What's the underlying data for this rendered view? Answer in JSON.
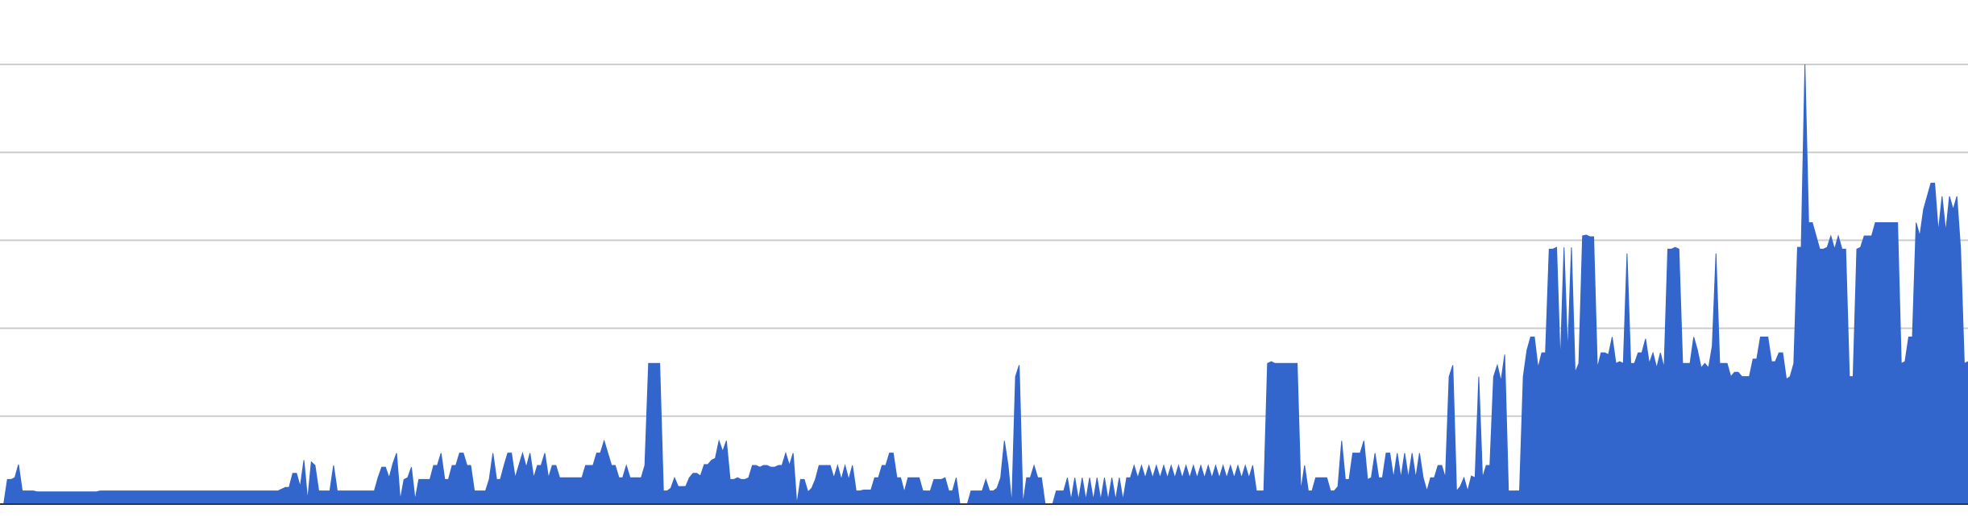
{
  "chart_data": {
    "type": "area",
    "title": "",
    "xlabel": "",
    "ylabel": "",
    "grid": true,
    "legend": "none",
    "ylim": [
      0,
      5
    ],
    "gridlines": [
      1,
      2,
      3,
      4,
      5
    ],
    "colors": {
      "fill": "#3366cc",
      "grid": "#cccccc",
      "baseline": "#333333"
    },
    "series": [
      {
        "values": [
          0.0,
          0.0,
          0.28,
          0.28,
          0.3,
          0.45,
          0.15,
          0.15,
          0.15,
          0.15,
          0.14,
          0.14,
          0.14,
          0.14,
          0.14,
          0.14,
          0.14,
          0.14,
          0.14,
          0.14,
          0.14,
          0.14,
          0.14,
          0.14,
          0.14,
          0.14,
          0.14,
          0.15,
          0.15,
          0.15,
          0.15,
          0.15,
          0.15,
          0.15,
          0.15,
          0.15,
          0.15,
          0.15,
          0.15,
          0.15,
          0.15,
          0.15,
          0.15,
          0.15,
          0.15,
          0.15,
          0.15,
          0.15,
          0.15,
          0.15,
          0.15,
          0.15,
          0.15,
          0.15,
          0.15,
          0.15,
          0.15,
          0.15,
          0.15,
          0.15,
          0.15,
          0.15,
          0.15,
          0.15,
          0.15,
          0.15,
          0.15,
          0.15,
          0.15,
          0.15,
          0.15,
          0.15,
          0.15,
          0.15,
          0.15,
          0.15,
          0.17,
          0.19,
          0.19,
          0.35,
          0.35,
          0.2,
          0.5,
          0.05,
          0.48,
          0.44,
          0.15,
          0.15,
          0.15,
          0.15,
          0.44,
          0.15,
          0.15,
          0.15,
          0.15,
          0.15,
          0.15,
          0.15,
          0.15,
          0.15,
          0.15,
          0.15,
          0.3,
          0.42,
          0.42,
          0.3,
          0.46,
          0.58,
          0.05,
          0.28,
          0.3,
          0.42,
          0.05,
          0.28,
          0.28,
          0.28,
          0.28,
          0.44,
          0.44,
          0.58,
          0.28,
          0.28,
          0.44,
          0.44,
          0.58,
          0.58,
          0.44,
          0.44,
          0.15,
          0.15,
          0.15,
          0.15,
          0.28,
          0.58,
          0.28,
          0.28,
          0.44,
          0.58,
          0.58,
          0.3,
          0.44,
          0.58,
          0.42,
          0.58,
          0.3,
          0.44,
          0.44,
          0.58,
          0.3,
          0.44,
          0.44,
          0.3,
          0.3,
          0.3,
          0.3,
          0.3,
          0.3,
          0.3,
          0.44,
          0.44,
          0.44,
          0.58,
          0.58,
          0.72,
          0.58,
          0.44,
          0.44,
          0.3,
          0.3,
          0.44,
          0.3,
          0.3,
          0.3,
          0.3,
          0.44,
          1.6,
          1.6,
          1.6,
          1.6,
          0.15,
          0.15,
          0.18,
          0.3,
          0.2,
          0.2,
          0.2,
          0.3,
          0.35,
          0.35,
          0.32,
          0.45,
          0.45,
          0.5,
          0.52,
          0.72,
          0.6,
          0.72,
          0.28,
          0.28,
          0.3,
          0.28,
          0.28,
          0.3,
          0.44,
          0.44,
          0.42,
          0.44,
          0.44,
          0.42,
          0.42,
          0.44,
          0.44,
          0.58,
          0.44,
          0.58,
          0.0,
          0.28,
          0.28,
          0.14,
          0.18,
          0.28,
          0.44,
          0.44,
          0.44,
          0.44,
          0.3,
          0.44,
          0.28,
          0.44,
          0.28,
          0.44,
          0.15,
          0.15,
          0.16,
          0.16,
          0.16,
          0.3,
          0.3,
          0.44,
          0.44,
          0.58,
          0.58,
          0.3,
          0.3,
          0.14,
          0.3,
          0.3,
          0.3,
          0.3,
          0.15,
          0.15,
          0.15,
          0.28,
          0.28,
          0.28,
          0.3,
          0.15,
          0.15,
          0.3,
          0.0,
          0.0,
          0.0,
          0.15,
          0.15,
          0.15,
          0.15,
          0.28,
          0.15,
          0.15,
          0.18,
          0.3,
          0.72,
          0.44,
          0.0,
          1.45,
          1.58,
          0.0,
          0.3,
          0.3,
          0.44,
          0.3,
          0.3,
          0.0,
          0.0,
          0.0,
          0.15,
          0.15,
          0.15,
          0.3,
          0.05,
          0.3,
          0.05,
          0.3,
          0.05,
          0.3,
          0.05,
          0.3,
          0.05,
          0.3,
          0.05,
          0.3,
          0.05,
          0.3,
          0.05,
          0.3,
          0.3,
          0.44,
          0.3,
          0.44,
          0.3,
          0.44,
          0.3,
          0.44,
          0.3,
          0.44,
          0.3,
          0.44,
          0.3,
          0.44,
          0.3,
          0.44,
          0.3,
          0.44,
          0.3,
          0.44,
          0.3,
          0.44,
          0.3,
          0.44,
          0.3,
          0.44,
          0.3,
          0.44,
          0.3,
          0.44,
          0.3,
          0.44,
          0.3,
          0.44,
          0.15,
          0.15,
          0.15,
          1.6,
          1.62,
          1.6,
          1.6,
          1.6,
          1.6,
          1.6,
          1.6,
          1.6,
          0.15,
          0.44,
          0.15,
          0.15,
          0.3,
          0.3,
          0.3,
          0.3,
          0.15,
          0.15,
          0.2,
          0.72,
          0.28,
          0.28,
          0.58,
          0.58,
          0.58,
          0.72,
          0.28,
          0.3,
          0.58,
          0.3,
          0.3,
          0.58,
          0.58,
          0.3,
          0.58,
          0.3,
          0.58,
          0.3,
          0.58,
          0.3,
          0.58,
          0.3,
          0.15,
          0.3,
          0.3,
          0.44,
          0.44,
          0.3,
          1.45,
          1.58,
          0.15,
          0.2,
          0.3,
          0.15,
          0.32,
          0.3,
          1.45,
          0.3,
          0.44,
          0.44,
          1.45,
          1.58,
          1.4,
          1.7,
          0.15,
          0.15,
          0.15,
          0.15,
          1.45,
          1.75,
          1.9,
          1.9,
          1.55,
          1.72,
          1.72,
          2.9,
          2.9,
          2.92,
          1.62,
          2.92,
          1.72,
          2.92,
          1.5,
          1.6,
          3.05,
          3.06,
          3.04,
          3.04,
          1.55,
          1.72,
          1.72,
          1.7,
          1.9,
          1.6,
          1.62,
          1.6,
          2.85,
          1.6,
          1.6,
          1.72,
          1.72,
          1.88,
          1.6,
          1.72,
          1.55,
          1.72,
          1.55,
          2.9,
          2.9,
          2.92,
          2.9,
          1.6,
          1.6,
          1.6,
          1.9,
          1.75,
          1.55,
          1.6,
          1.55,
          1.8,
          2.85,
          1.6,
          1.6,
          1.6,
          1.45,
          1.5,
          1.5,
          1.45,
          1.45,
          1.45,
          1.65,
          1.65,
          1.9,
          1.9,
          1.9,
          1.62,
          1.62,
          1.72,
          1.72,
          1.42,
          1.45,
          1.6,
          2.92,
          2.92,
          5.0,
          3.2,
          3.2,
          3.05,
          2.9,
          2.9,
          2.92,
          3.05,
          2.9,
          3.05,
          2.9,
          2.9,
          1.45,
          1.45,
          2.9,
          2.92,
          3.05,
          3.05,
          3.05,
          3.2,
          3.2,
          3.2,
          3.2,
          3.2,
          3.2,
          3.2,
          1.6,
          1.62,
          1.9,
          1.9,
          3.2,
          3.05,
          3.35,
          3.5,
          3.65,
          3.65,
          3.1,
          3.5,
          3.1,
          3.5,
          3.35,
          3.5,
          2.9,
          1.6,
          1.62
        ]
      }
    ]
  }
}
